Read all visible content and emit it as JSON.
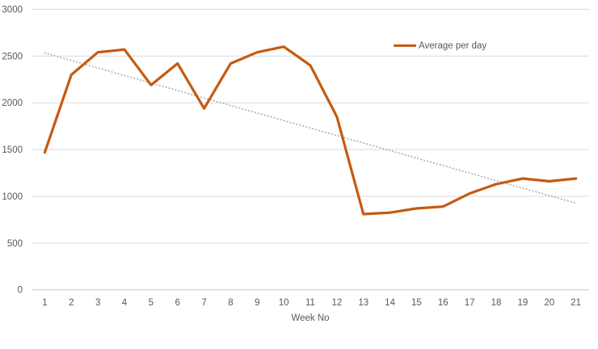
{
  "chart_data": {
    "type": "line",
    "title": "",
    "xlabel": "Week No",
    "ylabel": "",
    "x": [
      1,
      2,
      3,
      4,
      5,
      6,
      7,
      8,
      9,
      10,
      11,
      12,
      13,
      14,
      15,
      16,
      17,
      18,
      19,
      20,
      21
    ],
    "series": [
      {
        "name": "Average per day",
        "color": "#C55A11",
        "values": [
          1470,
          2300,
          2540,
          2570,
          2190,
          2420,
          1940,
          2420,
          2540,
          2600,
          2400,
          1850,
          810,
          825,
          870,
          890,
          1030,
          1130,
          1190,
          1160,
          1190
        ]
      }
    ],
    "trendline": {
      "type": "linear",
      "style": "dotted",
      "color": "#A6A6A6",
      "values_at_ends": [
        2533,
        927
      ]
    },
    "ylim": [
      0,
      3000
    ],
    "yticks": [
      0,
      500,
      1000,
      1500,
      2000,
      2500,
      3000
    ],
    "grid": "horizontal",
    "legend_position": "top-right-inside"
  },
  "colors": {
    "series_orange": "#C55A11",
    "trendline_gray": "#A6A6A6",
    "gridline": "#D9D9D9",
    "axis_line": "#C8C8C8",
    "tick_label": "#595959",
    "background": "#FFFFFF"
  }
}
